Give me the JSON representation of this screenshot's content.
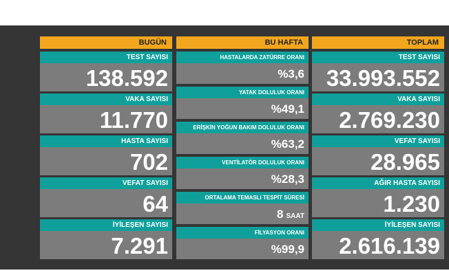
{
  "columns": [
    {
      "header": "BUGÜN",
      "items": [
        {
          "label": "TEST SAYISI",
          "value": "138.592"
        },
        {
          "label": "VAKA SAYISI",
          "value": "11.770"
        },
        {
          "label": "HASTA SAYISI",
          "value": "702"
        },
        {
          "label": "VEFAT SAYISI",
          "value": "64"
        },
        {
          "label": "İYİLEŞEN SAYISI",
          "value": "7.291"
        }
      ]
    },
    {
      "header": "BU HAFTA",
      "items": [
        {
          "label": "HASTALARDA ZATÜRRE ORANI",
          "value": "%3,6"
        },
        {
          "label": "YATAK DOLULUK ORANI",
          "value": "%49,1"
        },
        {
          "label": "ERİŞKİN YOĞUN BAKIM DOLULUK ORANI",
          "value": "%63,2"
        },
        {
          "label": "VENTİLATÖR DOLULUK ORANI",
          "value": "%28,3"
        },
        {
          "label": "ORTALAMA TEMASLI TESPİT SÜRESİ",
          "value": "8",
          "unit": "SAAT"
        },
        {
          "label": "FİLYASYON ORANI",
          "value": "%99,9"
        }
      ]
    },
    {
      "header": "TOPLAM",
      "items": [
        {
          "label": "TEST SAYISI",
          "value": "33.993.552"
        },
        {
          "label": "VAKA SAYISI",
          "value": "2.769.230"
        },
        {
          "label": "VEFAT SAYISI",
          "value": "28.965"
        },
        {
          "label": "AĞIR HASTA SAYISI",
          "value": "1.230"
        },
        {
          "label": "İYİLEŞEN SAYISI",
          "value": "2.616.139"
        }
      ]
    }
  ]
}
